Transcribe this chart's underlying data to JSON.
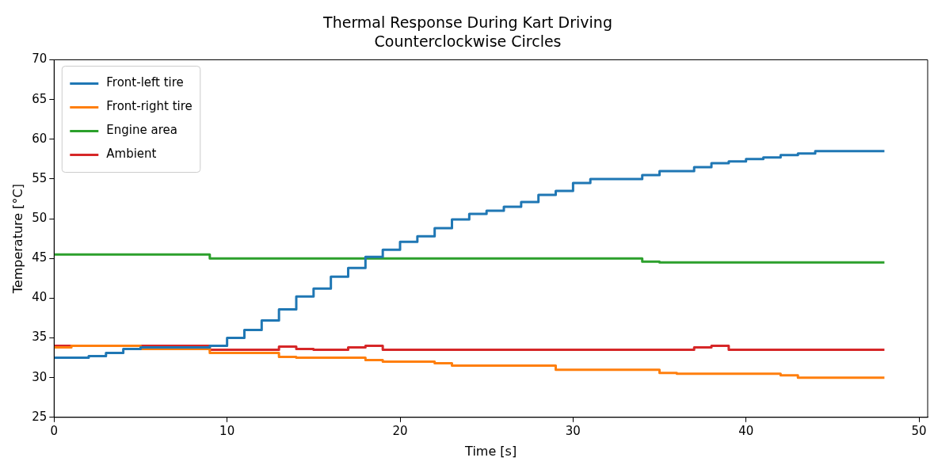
{
  "chart_data": {
    "type": "step",
    "title": "Thermal Response During Kart Driving\nCounterclockwise Circles",
    "xlabel": "Time [s]",
    "ylabel": "Temperature [°C]",
    "xlim": [
      0,
      50.5
    ],
    "xticks": [
      0,
      10,
      20,
      30,
      40,
      50
    ],
    "ylim": [
      25,
      70
    ],
    "yticks": [
      25,
      30,
      35,
      40,
      45,
      50,
      55,
      60,
      65,
      70
    ],
    "grid": false,
    "legend": "top left",
    "marker": "none",
    "line_style": "solid",
    "series": [
      {
        "name": "Front-left tire",
        "color": "#1f77b4",
        "x": [
          0,
          2,
          3,
          4,
          5,
          9,
          10,
          11,
          12,
          13,
          14,
          15,
          16,
          17,
          18,
          19,
          20,
          21,
          22,
          23,
          24,
          25,
          26,
          27,
          28,
          29,
          30,
          31,
          34,
          35,
          37,
          38,
          39,
          40,
          41,
          42,
          43,
          44,
          48
        ],
        "values": [
          32.5,
          32.7,
          33.1,
          33.6,
          33.8,
          34,
          35,
          36,
          37.2,
          38.6,
          40.2,
          41.2,
          42.7,
          43.8,
          45.2,
          46.1,
          47.1,
          47.8,
          48.8,
          49.9,
          50.6,
          51,
          51.5,
          52.1,
          53,
          53.5,
          54.5,
          55,
          55.5,
          56,
          56.5,
          57,
          57.2,
          57.5,
          57.7,
          58,
          58.2,
          58.5,
          58.5
        ]
      },
      {
        "name": "Front-right tire",
        "color": "#ff7f0e",
        "x": [
          0,
          1,
          5,
          9,
          13,
          14,
          18,
          19,
          22,
          23,
          29,
          35,
          36,
          42,
          43,
          48
        ],
        "values": [
          33.8,
          34,
          33.6,
          33.1,
          32.6,
          32.5,
          32.2,
          32,
          31.8,
          31.5,
          31,
          30.6,
          30.5,
          30.3,
          30,
          30
        ]
      },
      {
        "name": "Engine area",
        "color": "#2ca02c",
        "x": [
          0,
          9,
          34,
          35,
          48
        ],
        "values": [
          45.5,
          45,
          44.6,
          44.5,
          44.5
        ]
      },
      {
        "name": "Ambient",
        "color": "#d62728",
        "x": [
          0,
          9,
          13,
          14,
          15,
          17,
          18,
          19,
          37,
          38,
          39,
          48
        ],
        "values": [
          34,
          33.5,
          33.9,
          33.6,
          33.5,
          33.8,
          34,
          33.5,
          33.8,
          34,
          33.5,
          33.5
        ]
      }
    ]
  }
}
